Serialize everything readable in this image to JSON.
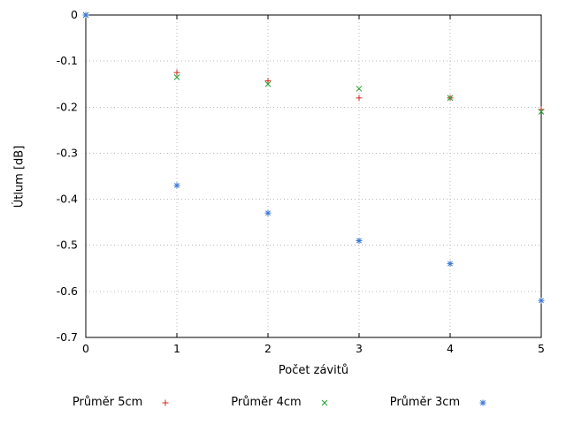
{
  "figure": {
    "background": "#ffffff"
  },
  "chart_data": {
    "type": "scatter",
    "title": "",
    "xlabel": "Počet závitů",
    "ylabel": "Útlum [dB]",
    "xlim": [
      0,
      5
    ],
    "ylim": [
      -0.7,
      0
    ],
    "xticks": [
      0,
      1,
      2,
      3,
      4,
      5
    ],
    "yticks": [
      0,
      -0.1,
      -0.2,
      -0.3,
      -0.4,
      -0.5,
      -0.6,
      -0.7
    ],
    "grid": true,
    "grid_color": "#b8b8b8",
    "axis_color": "#000000",
    "legend_position": "bottom-center",
    "series": [
      {
        "name": "Průměr 5cm",
        "marker": "plus",
        "color": "#cc2a1e",
        "x": [
          0,
          1,
          2,
          3,
          4,
          5
        ],
        "y": [
          0,
          -0.125,
          -0.143,
          -0.18,
          -0.18,
          -0.205
        ]
      },
      {
        "name": "Průměr 4cm",
        "marker": "cross",
        "color": "#1fa12e",
        "x": [
          0,
          1,
          2,
          3,
          4,
          5
        ],
        "y": [
          0,
          -0.135,
          -0.15,
          -0.16,
          -0.18,
          -0.21
        ]
      },
      {
        "name": "Průměr 3cm",
        "marker": "asterisk",
        "color": "#3e78d6",
        "x": [
          0,
          1,
          2,
          3,
          4,
          5
        ],
        "y": [
          0,
          -0.37,
          -0.43,
          -0.49,
          -0.54,
          -0.62
        ]
      }
    ]
  }
}
